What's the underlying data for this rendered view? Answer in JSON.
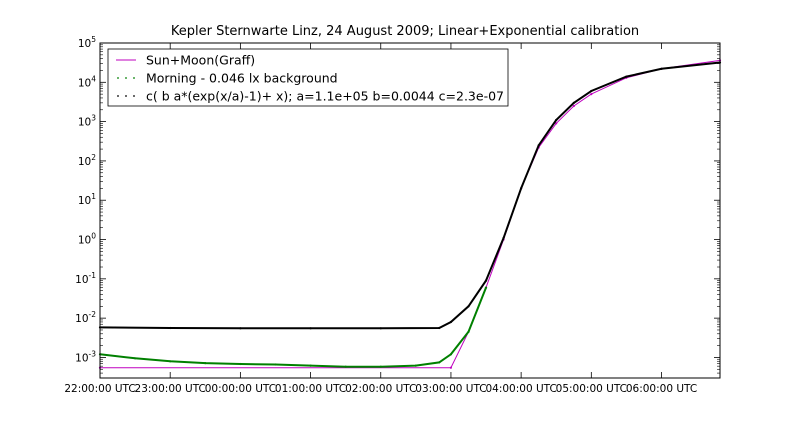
{
  "chart_data": {
    "type": "line",
    "title": "Kepler Sternwarte Linz, 24 August 2009; Linear+Exponential calibration",
    "xlabel": "",
    "ylabel": "",
    "y_scale": "log",
    "ylim": [
      0.0003,
      100000
    ],
    "xlim": [
      "22:00:00 UTC",
      "06:50:00 UTC"
    ],
    "x_ticks": [
      "22:00:00 UTC",
      "23:00:00 UTC",
      "00:00:00 UTC",
      "01:00:00 UTC",
      "02:00:00 UTC",
      "03:00:00 UTC",
      "04:00:00 UTC",
      "05:00:00 UTC",
      "06:00:00 UTC"
    ],
    "y_ticks": [
      {
        "value": 0.001,
        "base": "10",
        "exp": "-3"
      },
      {
        "value": 0.01,
        "base": "10",
        "exp": "-2"
      },
      {
        "value": 0.1,
        "base": "10",
        "exp": "-1"
      },
      {
        "value": 1,
        "base": "10",
        "exp": "0"
      },
      {
        "value": 10,
        "base": "10",
        "exp": "1"
      },
      {
        "value": 100,
        "base": "10",
        "exp": "2"
      },
      {
        "value": 1000,
        "base": "10",
        "exp": "3"
      },
      {
        "value": 10000,
        "base": "10",
        "exp": "4"
      },
      {
        "value": 100000,
        "base": "10",
        "exp": "5"
      }
    ],
    "grid": false,
    "legend_position": "top-left",
    "series": [
      {
        "name": "Sun+Moon(Graff)",
        "color": "#bf00bf",
        "style": "line",
        "x": [
          "22:00",
          "03:00",
          "03:15",
          "03:30",
          "03:45",
          "04:00",
          "04:15",
          "04:30",
          "04:45",
          "05:00",
          "05:30",
          "06:00",
          "06:50"
        ],
        "values": [
          0.00055,
          0.00055,
          0.0045,
          0.06,
          1.0,
          20,
          220,
          900,
          2500,
          5000,
          13000,
          22000,
          36000
        ]
      },
      {
        "name": "Morning - 0.046 lx background",
        "color": "#008000",
        "style": "dots",
        "x": [
          "22:00",
          "22:30",
          "23:00",
          "23:30",
          "00:00",
          "00:30",
          "01:00",
          "01:30",
          "02:00",
          "02:30",
          "02:50",
          "03:00",
          "03:15",
          "03:30"
        ],
        "values": [
          0.0012,
          0.00095,
          0.0008,
          0.00072,
          0.00068,
          0.00066,
          0.00062,
          0.00058,
          0.00058,
          0.00062,
          0.00075,
          0.0012,
          0.0045,
          0.06
        ]
      },
      {
        "name": "c( b a*(exp(x/a)-1)+ x); a=1.1e+05 b=0.0044 c=2.3e-07",
        "color": "#000000",
        "style": "dots",
        "x": [
          "22:00",
          "23:00",
          "00:00",
          "01:00",
          "02:00",
          "02:50",
          "03:00",
          "03:15",
          "03:30",
          "03:45",
          "04:00",
          "04:15",
          "04:30",
          "04:45",
          "05:00",
          "05:30",
          "06:00",
          "06:50"
        ],
        "values": [
          0.0058,
          0.0056,
          0.0055,
          0.0055,
          0.0055,
          0.0056,
          0.008,
          0.02,
          0.09,
          1.1,
          20,
          250,
          1100,
          3000,
          6000,
          14000,
          22000,
          32000
        ]
      }
    ]
  }
}
